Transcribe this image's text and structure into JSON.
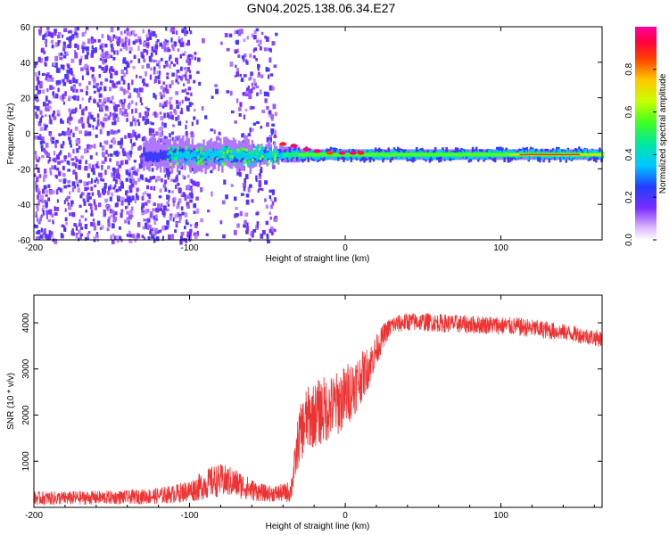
{
  "figure": {
    "title": "GN04.2025.138.06.34.E27"
  },
  "colorbar": {
    "label": "Normalized spectral amplitude",
    "ticks": [
      "0.0",
      "0.2",
      "0.4",
      "0.6",
      "0.8"
    ],
    "range": [
      0,
      1
    ]
  },
  "chart_data": [
    {
      "type": "heatmap",
      "xlabel": "Height of straight line (km)",
      "ylabel": "Frequency (Hz)",
      "xlim": [
        -200,
        165
      ],
      "ylim": [
        -60,
        60
      ],
      "xticks": [
        -200,
        -100,
        0,
        100
      ],
      "yticks": [
        -60,
        -40,
        -20,
        0,
        20,
        40,
        60
      ],
      "signal_band": {
        "x_start": -130,
        "x_end": 165,
        "center_frequency_hz": -12,
        "peak_amplitude": 1.0,
        "peak_region_x": [
          -40,
          10
        ],
        "strong_region_x": [
          110,
          165
        ]
      },
      "noise_region_x": [
        -200,
        -45
      ]
    },
    {
      "type": "line",
      "xlabel": "Height of straight line (km)",
      "ylabel": "SNR (10 * v/v)",
      "xlim": [
        -200,
        165
      ],
      "ylim": [
        0,
        4600
      ],
      "xticks": [
        -200,
        -100,
        0,
        100
      ],
      "yticks": [
        1000,
        2000,
        3000,
        4000
      ],
      "series": [
        {
          "color": "#ee3333",
          "x": [
            -200,
            -180,
            -160,
            -140,
            -120,
            -110,
            -100,
            -95,
            -90,
            -85,
            -80,
            -75,
            -70,
            -65,
            -60,
            -55,
            -50,
            -45,
            -40,
            -35,
            -32,
            -30,
            -25,
            -20,
            -15,
            -10,
            -5,
            0,
            5,
            10,
            15,
            20,
            25,
            30,
            40,
            50,
            60,
            70,
            80,
            90,
            100,
            110,
            120,
            130,
            140,
            150,
            160,
            165
          ],
          "y": [
            200,
            200,
            210,
            220,
            250,
            290,
            360,
            420,
            500,
            560,
            580,
            560,
            520,
            450,
            380,
            330,
            300,
            300,
            310,
            350,
            1000,
            1500,
            1900,
            2000,
            2100,
            2150,
            2250,
            2400,
            2600,
            2800,
            3050,
            3400,
            3750,
            3950,
            4020,
            4020,
            4000,
            3980,
            3960,
            3960,
            3940,
            3920,
            3880,
            3840,
            3800,
            3740,
            3680,
            3650
          ],
          "noise_amplitude": [
            150,
            150,
            150,
            150,
            180,
            200,
            240,
            280,
            320,
            350,
            360,
            340,
            320,
            280,
            240,
            200,
            180,
            180,
            200,
            250,
            400,
            600,
            700,
            700,
            750,
            700,
            700,
            700,
            650,
            550,
            450,
            350,
            250,
            200,
            200,
            200,
            200,
            200,
            200,
            200,
            200,
            200,
            200,
            200,
            180,
            180,
            180,
            180
          ]
        }
      ]
    }
  ]
}
